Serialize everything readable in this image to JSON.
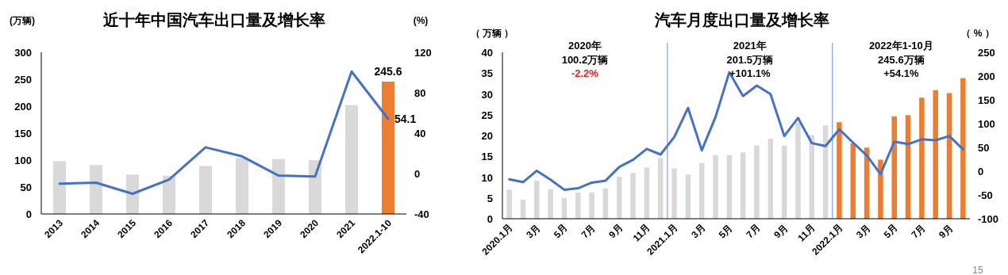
{
  "chart_data": [
    {
      "type": "bar",
      "title": "近十年中国汽车出口量及增长率",
      "ylabel": "(万辆)",
      "y2label": "(%)",
      "categories": [
        "2013",
        "2014",
        "2015",
        "2016",
        "2017",
        "2018",
        "2019",
        "2020",
        "2021",
        "2022.1-10"
      ],
      "series": [
        {
          "colors": [
            "#d9d9d9",
            "#d9d9d9",
            "#d9d9d9",
            "#d9d9d9",
            "#d9d9d9",
            "#d9d9d9",
            "#d9d9d9",
            "#d9d9d9",
            "#d9d9d9",
            "#ed7d31"
          ],
          "values": [
            98,
            91,
            73,
            71,
            89,
            104,
            102,
            100,
            202,
            245.6
          ],
          "value_labels": [
            null,
            null,
            null,
            null,
            null,
            null,
            null,
            null,
            null,
            "245.6"
          ]
        },
        {
          "type": "line",
          "axis": "y2",
          "color": "#4472c4",
          "values": [
            -10,
            -9,
            -20,
            -6,
            26,
            17,
            -2,
            -3,
            101,
            54.1
          ],
          "value_labels": [
            null,
            null,
            null,
            null,
            null,
            null,
            null,
            null,
            null,
            "54.1"
          ]
        }
      ],
      "ylim": [
        0,
        300
      ],
      "yticks": [
        0,
        50,
        100,
        150,
        200,
        250,
        300
      ],
      "y2lim": [
        -40,
        120
      ],
      "y2ticks": [
        -40,
        0,
        40,
        80,
        120
      ],
      "grid": false,
      "marker": "none"
    },
    {
      "type": "bar",
      "title": "汽车月度出口量及增长率",
      "ylabel": "（ 万辆 ）",
      "y2label": "（ % ）",
      "categories": [
        "2020.1月",
        null,
        "3月",
        null,
        "5月",
        null,
        "7月",
        null,
        "9月",
        null,
        "11月",
        null,
        "2021.1月",
        null,
        "3月",
        null,
        "5月",
        null,
        "7月",
        null,
        "9月",
        null,
        "11月",
        null,
        "2022.1月",
        null,
        "3月",
        null,
        "5月",
        null,
        "7月",
        null,
        "9月",
        null
      ],
      "series": [
        {
          "colors": [
            "#d9d9d9",
            "#d9d9d9",
            "#d9d9d9",
            "#d9d9d9",
            "#d9d9d9",
            "#d9d9d9",
            "#d9d9d9",
            "#d9d9d9",
            "#d9d9d9",
            "#d9d9d9",
            "#d9d9d9",
            "#d9d9d9",
            "#d9d9d9",
            "#d9d9d9",
            "#d9d9d9",
            "#d9d9d9",
            "#d9d9d9",
            "#d9d9d9",
            "#d9d9d9",
            "#d9d9d9",
            "#d9d9d9",
            "#d9d9d9",
            "#d9d9d9",
            "#d9d9d9",
            "#ed7d31",
            "#ed7d31",
            "#ed7d31",
            "#ed7d31",
            "#ed7d31",
            "#ed7d31",
            "#ed7d31",
            "#ed7d31",
            "#ed7d31",
            "#ed7d31"
          ],
          "values": [
            7.0,
            4.6,
            9.2,
            7.1,
            5.0,
            6.3,
            6.3,
            7.3,
            10.1,
            11.0,
            12.3,
            14.6,
            12.1,
            10.6,
            13.4,
            15.3,
            15.3,
            15.9,
            17.6,
            19.2,
            17.6,
            23.1,
            20.1,
            22.4,
            23.2,
            18.1,
            17.1,
            14.2,
            24.6,
            24.9,
            29.1,
            30.9,
            30.2,
            33.8
          ]
        },
        {
          "type": "line",
          "axis": "y2",
          "color": "#4472c4",
          "values": [
            -17,
            -23,
            1,
            -18,
            -39,
            -36,
            -24,
            -20,
            9,
            24,
            47,
            35,
            72,
            133,
            44,
            114,
            208,
            158,
            180,
            162,
            74,
            112,
            59,
            53,
            88,
            60,
            33,
            -6,
            62,
            57,
            67,
            65,
            74,
            46
          ]
        }
      ],
      "ylim": [
        0,
        40
      ],
      "yticks": [
        0,
        5,
        10,
        15,
        20,
        25,
        30,
        35,
        40
      ],
      "y2lim": [
        -100,
        250
      ],
      "y2ticks": [
        -100,
        -50,
        0,
        50,
        100,
        150,
        200,
        250
      ],
      "annotations": [
        "2020年",
        "100.2万辆",
        "-2.2%",
        "2021年",
        "201.5万辆",
        "+101.1%",
        "2022年1-10月",
        "245.6万辆",
        "+54.1%",
        "15"
      ],
      "grid": false,
      "marker": "none"
    }
  ]
}
